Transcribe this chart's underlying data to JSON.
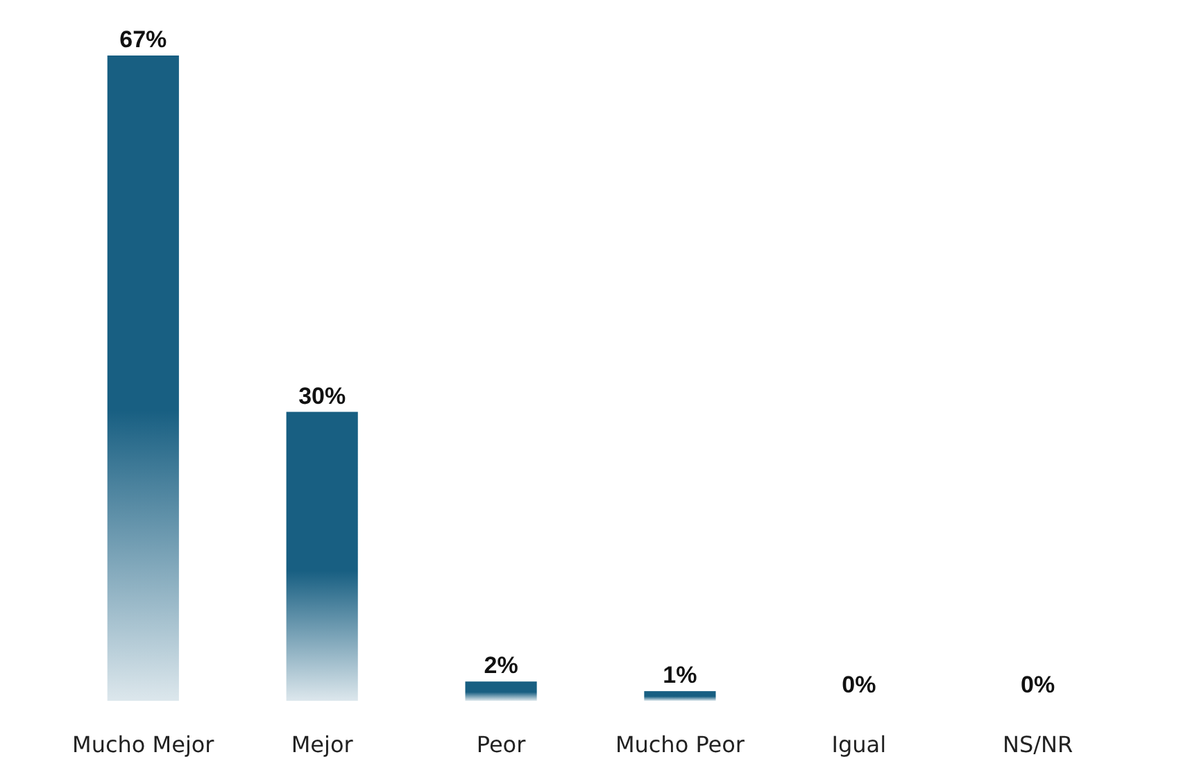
{
  "chart_data": {
    "type": "bar",
    "categories": [
      "Mucho Mejor",
      "Mejor",
      "Peor",
      "Mucho Peor",
      "Igual",
      "NS/NR"
    ],
    "values": [
      67,
      30,
      2,
      1,
      0,
      0
    ],
    "value_labels": [
      "67%",
      "30%",
      "2%",
      "1%",
      "0%",
      "0%"
    ],
    "color": "#185f82",
    "grid": false
  }
}
